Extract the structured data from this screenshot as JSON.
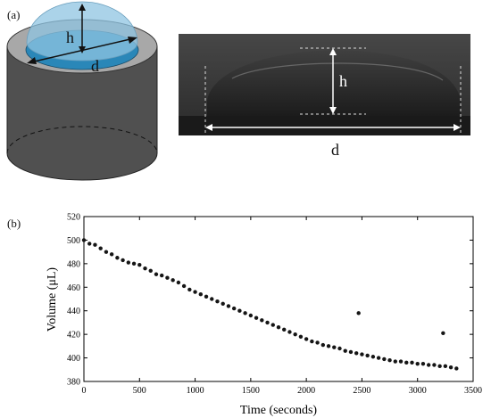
{
  "panel_a": {
    "label": "(a)",
    "diagram_labels": {
      "height": "h",
      "diameter": "d"
    },
    "photo_labels": {
      "height": "h",
      "diameter": "d"
    }
  },
  "panel_b": {
    "label": "(b)"
  },
  "colors": {
    "cylinder_side": "#505050",
    "cylinder_rim": "#a8a8a8",
    "liquid": "#2a87b8",
    "dome": "#8fc4e2",
    "photo_background": "#2b2b2b",
    "markers": "#151515"
  },
  "chart_data": {
    "type": "scatter",
    "title": "",
    "xlabel": "Time (seconds)",
    "ylabel": "Volume (μL)",
    "xlim": [
      0,
      3500
    ],
    "ylim": [
      380,
      520
    ],
    "xticks": [
      0,
      500,
      1000,
      1500,
      2000,
      2500,
      3000,
      3500
    ],
    "yticks": [
      380,
      400,
      420,
      440,
      460,
      480,
      500,
      520
    ],
    "grid": false,
    "legend": "none",
    "series": [
      {
        "marker": "filled-circle",
        "x": [
          0,
          50,
          100,
          150,
          200,
          250,
          300,
          350,
          400,
          450,
          500,
          550,
          600,
          650,
          700,
          750,
          800,
          850,
          900,
          950,
          1000,
          1050,
          1100,
          1150,
          1200,
          1250,
          1300,
          1350,
          1400,
          1450,
          1500,
          1550,
          1600,
          1650,
          1700,
          1750,
          1800,
          1850,
          1900,
          1950,
          2000,
          2050,
          2100,
          2150,
          2200,
          2250,
          2300,
          2350,
          2400,
          2450,
          2500,
          2550,
          2600,
          2650,
          2700,
          2750,
          2800,
          2850,
          2900,
          2950,
          3000,
          3050,
          3100,
          3150,
          3200,
          3250,
          3300,
          3350,
          2470,
          3230
        ],
        "y": [
          500,
          497,
          496,
          493,
          490,
          488,
          485,
          483,
          481,
          480,
          479,
          476,
          474,
          471,
          470,
          468,
          466,
          464,
          461,
          458,
          456,
          454,
          452,
          450,
          448,
          446,
          444,
          442,
          440,
          438,
          436,
          434,
          432,
          430,
          428,
          426,
          424,
          422,
          420,
          418,
          416,
          414,
          413,
          411,
          410,
          409,
          408,
          406,
          405,
          404,
          403,
          402,
          401,
          400,
          399,
          398,
          397,
          397,
          396,
          396,
          395,
          395,
          394,
          394,
          393,
          393,
          392,
          391,
          438,
          421
        ]
      }
    ]
  }
}
